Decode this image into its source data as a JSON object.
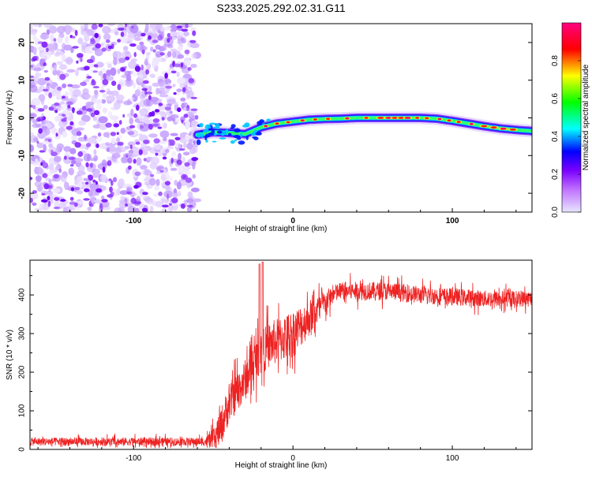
{
  "title": "S233.2025.292.02.31.G11",
  "chart_data": [
    {
      "type": "heatmap",
      "title": "S233.2025.292.02.31.G11",
      "xlabel": "Height of straight line (km)",
      "ylabel": "Frequency (Hz)",
      "xlim": [
        -165,
        150
      ],
      "ylim": [
        -25,
        25
      ],
      "xticks": [
        -100,
        0,
        100
      ],
      "yticks": [
        -20,
        -10,
        0,
        10,
        20
      ],
      "noise_region_x": [
        -165,
        -60
      ],
      "signal_start_x": -60,
      "ridge": {
        "x": [
          -60,
          -50,
          -40,
          -30,
          -20,
          -10,
          0,
          10,
          20,
          30,
          40,
          50,
          60,
          70,
          80,
          90,
          100,
          110,
          120,
          130,
          140,
          150
        ],
        "freq": [
          -4.5,
          -3.8,
          -4.0,
          -4.3,
          -2.5,
          -1.5,
          -1.0,
          -0.5,
          -0.3,
          -0.2,
          0.0,
          0.0,
          0.0,
          0.0,
          0.0,
          -0.2,
          -0.8,
          -1.5,
          -2.2,
          -2.8,
          -3.2,
          -3.5
        ]
      },
      "colorbar": {
        "label": "Normalized spectral amplitude",
        "range": [
          0.0,
          1.0
        ],
        "ticks": [
          "0.0",
          "0.2",
          "0.4",
          "0.6",
          "0.8"
        ],
        "colormap": [
          "#e0e0ff",
          "#b000ff",
          "#0000ff",
          "#00ffff",
          "#00ff00",
          "#ffff00",
          "#ff0000",
          "#ff007f"
        ]
      }
    },
    {
      "type": "line",
      "xlabel": "Height of straight line (km)",
      "ylabel": "SNR (10 * v/v)",
      "xlim": [
        -165,
        150
      ],
      "ylim": [
        0,
        490
      ],
      "xticks": [
        -100,
        0,
        100
      ],
      "yticks": [
        0,
        100,
        200,
        300,
        400
      ],
      "color": "#ee2222",
      "series": [
        {
          "name": "SNR",
          "x": [
            -165,
            -120,
            -80,
            -55,
            -50,
            -45,
            -40,
            -35,
            -30,
            -25,
            -20,
            -15,
            -10,
            -5,
            0,
            5,
            10,
            15,
            20,
            25,
            30,
            40,
            60,
            80,
            100,
            120,
            140,
            150
          ],
          "values": [
            20,
            20,
            20,
            20,
            25,
            60,
            120,
            150,
            180,
            220,
            250,
            270,
            280,
            290,
            300,
            320,
            340,
            360,
            380,
            400,
            410,
            410,
            410,
            400,
            395,
            390,
            390,
            390
          ]
        }
      ],
      "spikes": [
        {
          "x": -21,
          "value": 480
        },
        {
          "x": -19,
          "value": 485
        }
      ],
      "noise_amplitude": [
        {
          "x": -165,
          "amp": 15
        },
        {
          "x": -55,
          "amp": 15
        },
        {
          "x": -45,
          "amp": 70
        },
        {
          "x": 0,
          "amp": 90
        },
        {
          "x": 25,
          "amp": 35
        },
        {
          "x": 150,
          "amp": 30
        }
      ]
    }
  ]
}
